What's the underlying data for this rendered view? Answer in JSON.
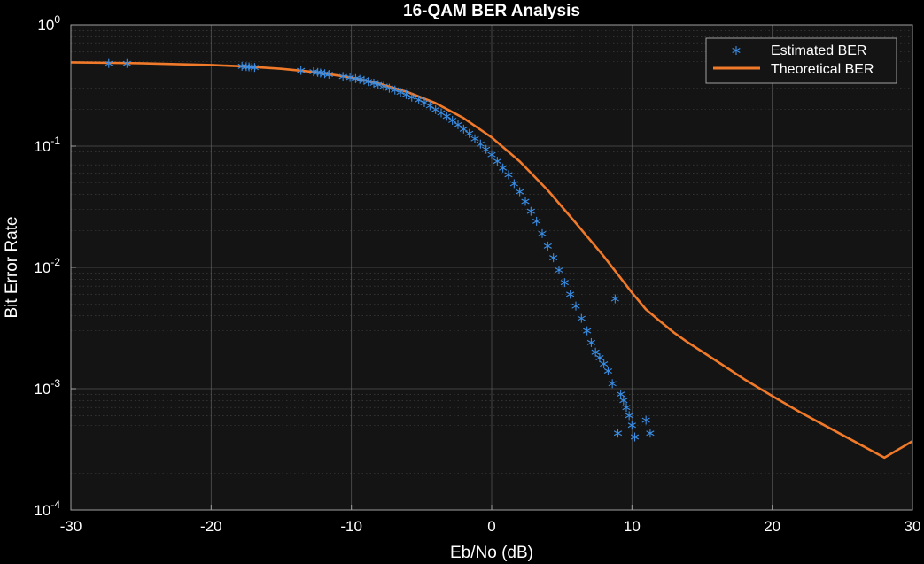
{
  "chart_data": {
    "type": "scatter",
    "title": "16-QAM BER Analysis",
    "xlabel": "Eb/No (dB)",
    "ylabel": "Bit Error Rate",
    "xlim": [
      -30,
      30
    ],
    "ylim": [
      0.0001,
      1
    ],
    "yscale": "log",
    "grid": true,
    "minor_grid": true,
    "legend_position": "top-right",
    "x_ticks": [
      -30,
      -20,
      -10,
      0,
      10,
      20,
      30
    ],
    "x_tick_labels": [
      "-30",
      "-20",
      "-10",
      "0",
      "10",
      "20",
      "30"
    ],
    "y_ticks": [
      {
        "value": 0.0001,
        "base": "10",
        "exp": "-4"
      },
      {
        "value": 0.001,
        "base": "10",
        "exp": "-3"
      },
      {
        "value": 0.01,
        "base": "10",
        "exp": "-2"
      },
      {
        "value": 0.1,
        "base": "10",
        "exp": "-1"
      },
      {
        "value": 1,
        "base": "10",
        "exp": "0"
      }
    ],
    "colors": {
      "background": "#000000",
      "axes_face": "#141414",
      "grid": "#6e6e6e",
      "text": "#ffffff",
      "estimated": "#3a8ee6",
      "theoretical": "#f07a2a"
    },
    "series": [
      {
        "name": "Estimated BER",
        "kind": "scatter",
        "marker": "asterisk",
        "x": [
          -27.3,
          -26,
          -17.8,
          -17.5,
          -17.3,
          -17.1,
          -16.9,
          -13.6,
          -12.7,
          -12.4,
          -12.2,
          -11.9,
          -11.6,
          -10.6,
          -10.1,
          -9.7,
          -9.4,
          -9.1,
          -8.8,
          -8.4,
          -8.1,
          -7.7,
          -7.3,
          -6.9,
          -6.5,
          -6.1,
          -5.7,
          -5.2,
          -4.8,
          -4.4,
          -4,
          -3.6,
          -3.2,
          -2.8,
          -2.4,
          -2,
          -1.6,
          -1.2,
          -0.8,
          -0.4,
          0,
          0.4,
          0.8,
          1.2,
          1.6,
          2,
          2.4,
          2.8,
          3.2,
          3.6,
          4,
          4.4,
          4.8,
          5.2,
          5.6,
          6,
          6.4,
          6.8,
          7.1,
          7.4,
          7.7,
          8,
          8.3,
          8.6,
          8.8,
          9,
          9.2,
          9.4,
          9.6,
          9.8,
          10,
          10.2,
          11,
          11.3
        ],
        "y": [
          0.48,
          0.48,
          0.455,
          0.452,
          0.45,
          0.448,
          0.445,
          0.42,
          0.41,
          0.405,
          0.4,
          0.395,
          0.39,
          0.375,
          0.368,
          0.36,
          0.355,
          0.348,
          0.34,
          0.33,
          0.322,
          0.312,
          0.3,
          0.29,
          0.278,
          0.266,
          0.253,
          0.24,
          0.228,
          0.215,
          0.2,
          0.188,
          0.176,
          0.163,
          0.15,
          0.138,
          0.127,
          0.115,
          0.104,
          0.094,
          0.085,
          0.075,
          0.066,
          0.058,
          0.049,
          0.042,
          0.035,
          0.029,
          0.024,
          0.019,
          0.015,
          0.012,
          0.0095,
          0.0075,
          0.006,
          0.0048,
          0.0038,
          0.003,
          0.0024,
          0.002,
          0.0018,
          0.0016,
          0.0014,
          0.0011,
          0.0055,
          0.00043,
          0.0009,
          0.0008,
          0.0007,
          0.0006,
          0.0005,
          0.0004,
          0.00055,
          0.00043
        ]
      },
      {
        "name": "Theoretical BER",
        "kind": "line",
        "x": [
          -30,
          -25,
          -20,
          -17.5,
          -15,
          -12.5,
          -10,
          -8,
          -6,
          -4,
          -2,
          0,
          2,
          4,
          6,
          8,
          10,
          11,
          12,
          13,
          14,
          16,
          18,
          20,
          22,
          24,
          26,
          28,
          30
        ],
        "y": [
          0.49,
          0.482,
          0.466,
          0.453,
          0.434,
          0.406,
          0.367,
          0.327,
          0.279,
          0.226,
          0.17,
          0.118,
          0.0747,
          0.0432,
          0.0232,
          0.0123,
          0.0062,
          0.0045,
          0.0036,
          0.0029,
          0.0024,
          0.0017,
          0.0012,
          0.00087,
          0.00064,
          0.00048,
          0.00036,
          0.00027,
          0.00037
        ]
      }
    ]
  }
}
